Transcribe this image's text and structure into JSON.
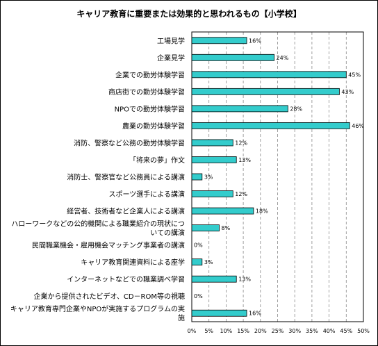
{
  "chart_data": {
    "type": "bar",
    "orientation": "horizontal",
    "title": "キャリア教育に重要または効果的と思われるもの【小学校】",
    "categories": [
      "工場見学",
      "企業見学",
      "企業での勤労体験学習",
      "商店街での勤労体験学習",
      "NPOでの勤労体験学習",
      "農業の勤労体験学習",
      "消防、警察など公務の勤労体験学習",
      "「将来の夢」作文",
      "消防士、警察官など公務員による講演",
      "スポーツ選手による講演",
      "経営者、技術者など企業人による講演",
      "ハローワークなどの公的機関による職業紹介の現状についての講演",
      "民間職業機会・雇用機会マッチング事業者の講演",
      "キャリア教育関連資料による座学",
      "インターネットなどでの職業調べ学習",
      "企業から提供されたビデオ、CD－ROM等の視聴",
      "キャリア教育専門企業やNPOが実施するプログラムの実施"
    ],
    "category_lines": [
      [
        "工場見学"
      ],
      [
        "企業見学"
      ],
      [
        "企業での勤労体験学習"
      ],
      [
        "商店街での勤労体験学習"
      ],
      [
        "NPOでの勤労体験学習"
      ],
      [
        "農業の勤労体験学習"
      ],
      [
        "消防、警察など公務の勤労体験学習"
      ],
      [
        "「将来の夢」作文"
      ],
      [
        "消防士、警察官など公務員による講演"
      ],
      [
        "スポーツ選手による講演"
      ],
      [
        "経営者、技術者など企業人による講演"
      ],
      [
        "ハローワークなどの公的機関による職業紹介の現状につ",
        "いての講演"
      ],
      [
        "民間職業機会・雇用機会マッチング事業者の講演"
      ],
      [
        "キャリア教育関連資料による座学"
      ],
      [
        "インターネットなどでの職業調べ学習"
      ],
      [
        "企業から提供されたビデオ、CD－ROM等の視聴"
      ],
      [
        "キャリア教育専門企業やNPOが実施するプログラムの実",
        "施"
      ]
    ],
    "values": [
      16,
      24,
      45,
      43,
      28,
      46,
      12,
      13,
      3,
      12,
      18,
      8,
      0,
      3,
      13,
      0,
      16
    ],
    "value_labels": [
      "16%",
      "24%",
      "45%",
      "43%",
      "28%",
      "46%",
      "12%",
      "13%",
      "3%",
      "12%",
      "18%",
      "8%",
      "0%",
      "3%",
      "13%",
      "0%",
      "16%"
    ],
    "xlim": [
      0,
      50
    ],
    "xticks": [
      "0%",
      "5%",
      "10%",
      "15%",
      "20%",
      "25%",
      "30%",
      "35%",
      "40%",
      "45%",
      "50%"
    ],
    "grid": true,
    "bar_color": "#33cccc",
    "xlabel": "",
    "ylabel": ""
  }
}
